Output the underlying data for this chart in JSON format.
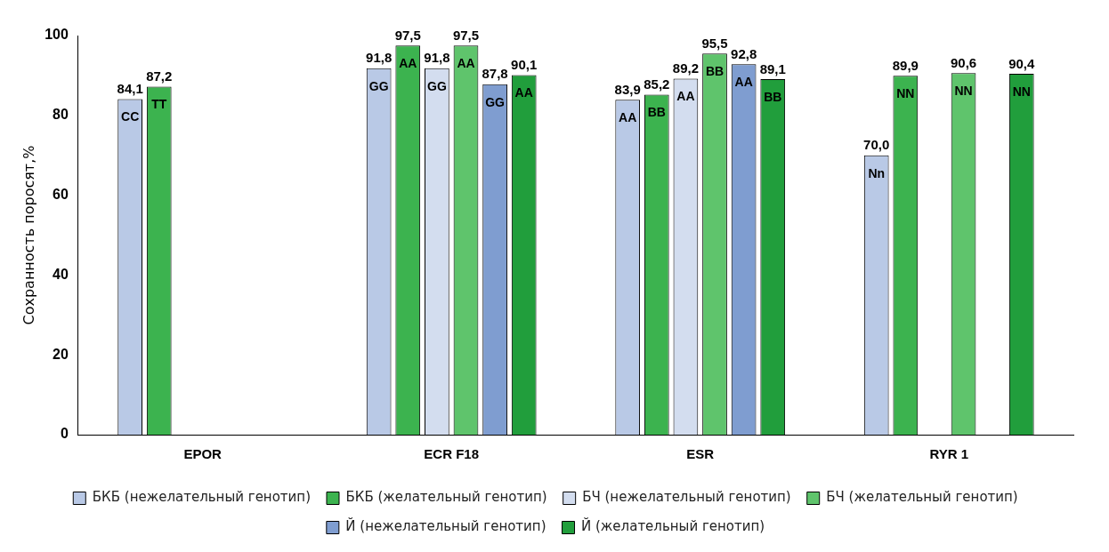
{
  "chart_data": {
    "type": "bar",
    "ylabel": "Сохранность поросят,%",
    "categories": [
      "EPOR",
      "ECR F18",
      "ESR",
      "RYR 1"
    ],
    "series": [
      {
        "name": "БКБ (нежелательный генотип)",
        "color": "#b9c9e6",
        "values": [
          84.1,
          91.8,
          83.9,
          70.0
        ],
        "value_labels": [
          "84,1",
          "91,8",
          "83,9",
          "70,0"
        ]
      },
      {
        "name": "БКБ (желательный генотип)",
        "color": "#3cb34f",
        "values": [
          87.2,
          97.5,
          85.2,
          89.9
        ],
        "value_labels": [
          "87,2",
          "97,5",
          "85,2",
          "89,9"
        ]
      },
      {
        "name": "БЧ (нежелательный генотип)",
        "color": "#d3ddef",
        "values": [
          null,
          91.8,
          89.2,
          null
        ],
        "value_labels": [
          null,
          "91,8",
          "89,2",
          null
        ]
      },
      {
        "name": "БЧ (желательный генотип)",
        "color": "#5fc46c",
        "values": [
          null,
          97.5,
          95.5,
          90.6
        ],
        "value_labels": [
          null,
          "97,5",
          "95,5",
          "90,6"
        ]
      },
      {
        "name": "Й (нежелательный генотип)",
        "color": "#7f9dd0",
        "values": [
          null,
          87.8,
          92.8,
          null
        ],
        "value_labels": [
          null,
          "87,8",
          "92,8",
          null
        ]
      },
      {
        "name": "Й (желательный генотип)",
        "color": "#219e3c",
        "values": [
          null,
          90.1,
          89.1,
          90.4
        ],
        "value_labels": [
          null,
          "90,1",
          "89,1",
          "90,4"
        ]
      }
    ],
    "annotations": [
      "CC",
      "TT",
      "GG",
      "AA",
      "GG",
      "AA",
      "GG",
      "AA",
      "AA",
      "BB",
      "AA",
      "BB",
      "AA",
      "BB",
      "Nn",
      "NN",
      "NN",
      "NN"
    ],
    "ylim": [
      0,
      100
    ],
    "yticks": [
      0,
      20,
      40,
      60,
      80,
      100
    ],
    "grid": false,
    "legend": "bottom"
  }
}
